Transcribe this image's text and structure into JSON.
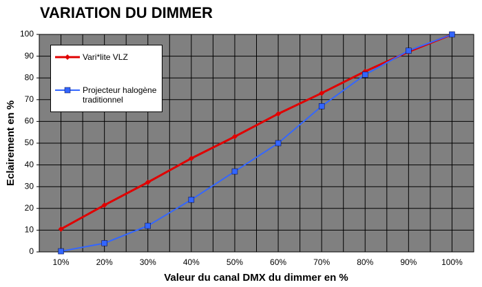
{
  "chart_data": {
    "type": "line",
    "title": "VARIATION DU DIMMER",
    "x_label": "Valeur du canal DMX du dimmer en %",
    "y_label": "Eclairement en %",
    "categories": [
      "10%",
      "20%",
      "30%",
      "40%",
      "50%",
      "60%",
      "70%",
      "80%",
      "90%",
      "100%"
    ],
    "series": [
      {
        "name": "Vari*lite VLZ",
        "color": "#e00000",
        "marker": "diamond",
        "values": [
          10.5,
          21.5,
          32,
          43,
          53,
          63.5,
          73,
          83,
          92,
          100
        ]
      },
      {
        "name": "Projecteur halogène traditionnel",
        "color": "#3366ff",
        "marker": "square",
        "values": [
          0.3,
          4,
          12,
          24,
          37,
          50,
          67,
          81.5,
          92.5,
          100
        ]
      }
    ],
    "ylim": [
      0,
      100
    ],
    "yticks": [
      0,
      10,
      20,
      30,
      40,
      50,
      60,
      70,
      80,
      90,
      100
    ],
    "grid": true
  }
}
